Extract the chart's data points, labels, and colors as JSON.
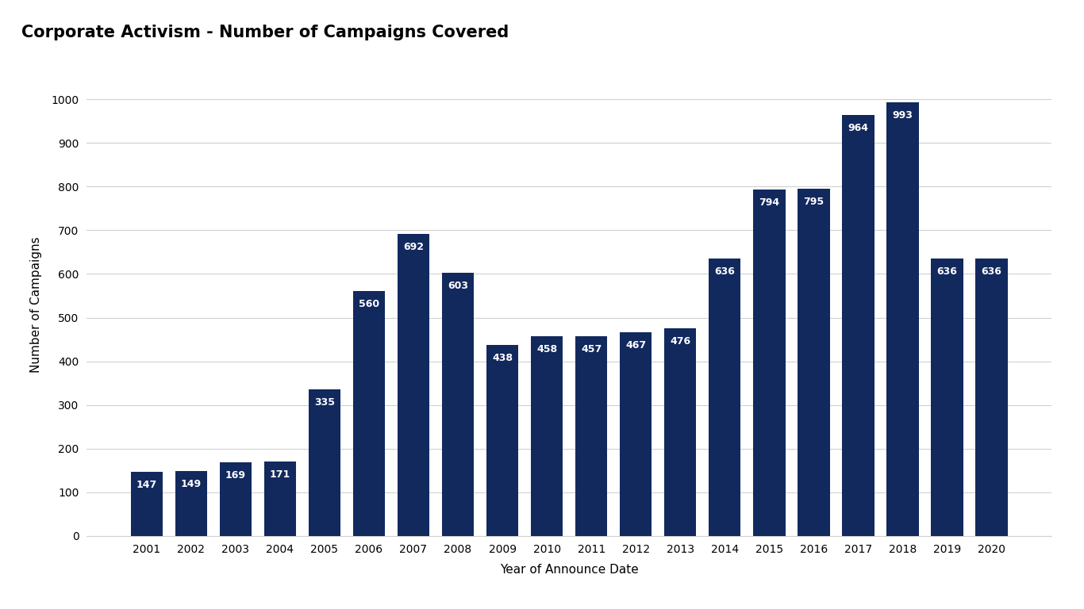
{
  "title": "Corporate Activism - Number of Campaigns Covered",
  "xlabel": "Year of Announce Date",
  "ylabel": "Number of Campaigns",
  "categories": [
    2001,
    2002,
    2003,
    2004,
    2005,
    2006,
    2007,
    2008,
    2009,
    2010,
    2011,
    2012,
    2013,
    2014,
    2015,
    2016,
    2017,
    2018,
    2019,
    2020
  ],
  "values": [
    147,
    149,
    169,
    171,
    335,
    560,
    692,
    603,
    438,
    458,
    457,
    467,
    476,
    636,
    794,
    795,
    964,
    993,
    636,
    636
  ],
  "bar_color": "#12295e",
  "background_color": "#ffffff",
  "ylim": [
    0,
    1060
  ],
  "yticks": [
    0,
    100,
    200,
    300,
    400,
    500,
    600,
    700,
    800,
    900,
    1000
  ],
  "label_color": "#ffffff",
  "title_fontsize": 15,
  "axis_label_fontsize": 11,
  "tick_fontsize": 10,
  "bar_label_fontsize": 9,
  "grid_color": "#d0d0d0",
  "bar_width": 0.72
}
